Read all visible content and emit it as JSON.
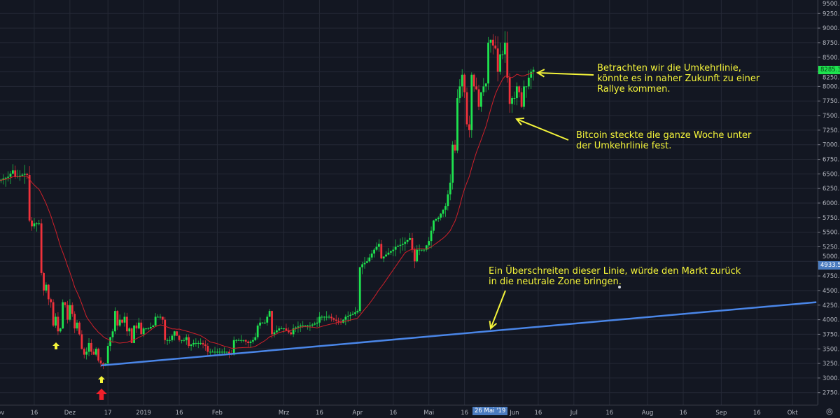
{
  "chart_data": {
    "type": "candlestick",
    "title": "",
    "xlabel": "",
    "ylabel": "",
    "ylim": [
      2550,
      9550
    ],
    "y_ticks": [
      2750,
      3000,
      3250,
      3500,
      3750,
      4000,
      4250,
      4500,
      4750,
      5000,
      5250,
      5500,
      5750,
      6000,
      6250,
      6500,
      6750,
      7000,
      7250,
      7500,
      7750,
      8000,
      8250,
      8500,
      8750,
      9000,
      9250,
      9500
    ],
    "x_ticks": [
      {
        "date": "2018-11-01",
        "label": "Nov"
      },
      {
        "date": "2018-11-16",
        "label": "16"
      },
      {
        "date": "2018-12-01",
        "label": "Dez"
      },
      {
        "date": "2018-12-17",
        "label": "17"
      },
      {
        "date": "2019-01-01",
        "label": "2019"
      },
      {
        "date": "2019-01-16",
        "label": "16"
      },
      {
        "date": "2019-02-01",
        "label": "Feb"
      },
      {
        "date": "2019-03-01",
        "label": "Mrz"
      },
      {
        "date": "2019-03-16",
        "label": "16"
      },
      {
        "date": "2019-04-01",
        "label": "Apr"
      },
      {
        "date": "2019-04-16",
        "label": "16"
      },
      {
        "date": "2019-05-01",
        "label": "Mai"
      },
      {
        "date": "2019-05-16",
        "label": "16"
      },
      {
        "date": "2019-06-01",
        "label": "Jun"
      },
      {
        "date": "2019-06-16",
        "label": "16"
      },
      {
        "date": "2019-07-01",
        "label": "Jul"
      },
      {
        "date": "2019-07-16",
        "label": "16"
      },
      {
        "date": "2019-08-01",
        "label": "Aug"
      },
      {
        "date": "2019-08-16",
        "label": "16"
      },
      {
        "date": "2019-09-01",
        "label": "Sep"
      },
      {
        "date": "2019-09-16",
        "label": "16"
      },
      {
        "date": "2019-10-01",
        "label": "Okt"
      }
    ],
    "grid": true,
    "colors": {
      "background": "#131722",
      "grid": "#252936",
      "up": "#1ee34f",
      "down": "#f0313b",
      "moving_average": "#d0202a",
      "trendline": "#4a86e8",
      "annotation": "#f5f53a"
    },
    "close_series": [
      [
        "2018-11-01",
        6380
      ],
      [
        "2018-11-03",
        6420
      ],
      [
        "2018-11-05",
        6450
      ],
      [
        "2018-11-07",
        6560
      ],
      [
        "2018-11-08",
        6450
      ],
      [
        "2018-11-10",
        6470
      ],
      [
        "2018-11-12",
        6500
      ],
      [
        "2018-11-13",
        6480
      ],
      [
        "2018-11-14",
        5700
      ],
      [
        "2018-11-15",
        5600
      ],
      [
        "2018-11-16",
        5650
      ],
      [
        "2018-11-18",
        5650
      ],
      [
        "2018-11-19",
        4800
      ],
      [
        "2018-11-20",
        4500
      ],
      [
        "2018-11-21",
        4600
      ],
      [
        "2018-11-22",
        4350
      ],
      [
        "2018-11-23",
        4300
      ],
      [
        "2018-11-24",
        3900
      ],
      [
        "2018-11-25",
        4050
      ],
      [
        "2018-11-26",
        3800
      ],
      [
        "2018-11-27",
        3850
      ],
      [
        "2018-11-28",
        4300
      ],
      [
        "2018-11-29",
        4250
      ],
      [
        "2018-11-30",
        4000
      ],
      [
        "2018-12-01",
        4250
      ],
      [
        "2018-12-02",
        4100
      ],
      [
        "2018-12-03",
        3850
      ],
      [
        "2018-12-04",
        3950
      ],
      [
        "2018-12-05",
        3750
      ],
      [
        "2018-12-06",
        3500
      ],
      [
        "2018-12-07",
        3400
      ],
      [
        "2018-12-08",
        3450
      ],
      [
        "2018-12-09",
        3600
      ],
      [
        "2018-12-10",
        3450
      ],
      [
        "2018-12-11",
        3400
      ],
      [
        "2018-12-12",
        3500
      ],
      [
        "2018-12-13",
        3300
      ],
      [
        "2018-12-14",
        3250
      ],
      [
        "2018-12-15",
        3230
      ],
      [
        "2018-12-16",
        3250
      ],
      [
        "2018-12-17",
        3550
      ],
      [
        "2018-12-18",
        3700
      ],
      [
        "2018-12-19",
        3800
      ],
      [
        "2018-12-20",
        4150
      ],
      [
        "2018-12-21",
        3900
      ],
      [
        "2018-12-22",
        4000
      ],
      [
        "2018-12-23",
        3950
      ],
      [
        "2018-12-24",
        4050
      ],
      [
        "2018-12-25",
        3800
      ],
      [
        "2018-12-26",
        3850
      ],
      [
        "2018-12-27",
        3600
      ],
      [
        "2018-12-28",
        3900
      ],
      [
        "2018-12-29",
        3850
      ],
      [
        "2018-12-30",
        3950
      ],
      [
        "2018-12-31",
        3750
      ],
      [
        "2019-01-01",
        3850
      ],
      [
        "2019-01-03",
        3850
      ],
      [
        "2019-01-05",
        3900
      ],
      [
        "2019-01-06",
        4050
      ],
      [
        "2019-01-08",
        4050
      ],
      [
        "2019-01-09",
        4000
      ],
      [
        "2019-01-10",
        3650
      ],
      [
        "2019-01-12",
        3650
      ],
      [
        "2019-01-14",
        3800
      ],
      [
        "2019-01-16",
        3650
      ],
      [
        "2019-01-18",
        3650
      ],
      [
        "2019-01-19",
        3700
      ],
      [
        "2019-01-20",
        3550
      ],
      [
        "2019-01-22",
        3600
      ],
      [
        "2019-01-25",
        3600
      ],
      [
        "2019-01-27",
        3550
      ],
      [
        "2019-01-28",
        3450
      ],
      [
        "2019-01-31",
        3450
      ],
      [
        "2019-02-03",
        3450
      ],
      [
        "2019-02-05",
        3450
      ],
      [
        "2019-02-07",
        3400
      ],
      [
        "2019-02-08",
        3650
      ],
      [
        "2019-02-10",
        3650
      ],
      [
        "2019-02-12",
        3650
      ],
      [
        "2019-02-14",
        3600
      ],
      [
        "2019-02-16",
        3650
      ],
      [
        "2019-02-17",
        3700
      ],
      [
        "2019-02-18",
        3900
      ],
      [
        "2019-02-19",
        3950
      ],
      [
        "2019-02-21",
        3950
      ],
      [
        "2019-02-23",
        4150
      ],
      [
        "2019-02-24",
        3750
      ],
      [
        "2019-02-27",
        3850
      ],
      [
        "2019-03-01",
        3850
      ],
      [
        "2019-03-04",
        3750
      ],
      [
        "2019-03-05",
        3850
      ],
      [
        "2019-03-08",
        3900
      ],
      [
        "2019-03-12",
        3900
      ],
      [
        "2019-03-15",
        3950
      ],
      [
        "2019-03-16",
        4050
      ],
      [
        "2019-03-20",
        4050
      ],
      [
        "2019-03-22",
        4000
      ],
      [
        "2019-03-25",
        3950
      ],
      [
        "2019-03-27",
        4050
      ],
      [
        "2019-03-30",
        4100
      ],
      [
        "2019-04-01",
        4150
      ],
      [
        "2019-04-02",
        4900
      ],
      [
        "2019-04-03",
        4950
      ],
      [
        "2019-04-05",
        5000
      ],
      [
        "2019-04-08",
        5200
      ],
      [
        "2019-04-10",
        5300
      ],
      [
        "2019-04-11",
        5050
      ],
      [
        "2019-04-14",
        5150
      ],
      [
        "2019-04-16",
        5200
      ],
      [
        "2019-04-17",
        5250
      ],
      [
        "2019-04-20",
        5300
      ],
      [
        "2019-04-23",
        5400
      ],
      [
        "2019-04-25",
        5000
      ],
      [
        "2019-04-26",
        5200
      ],
      [
        "2019-04-29",
        5200
      ],
      [
        "2019-05-01",
        5350
      ],
      [
        "2019-05-03",
        5700
      ],
      [
        "2019-05-05",
        5750
      ],
      [
        "2019-05-08",
        5950
      ],
      [
        "2019-05-10",
        6350
      ],
      [
        "2019-05-11",
        7000
      ],
      [
        "2019-05-12",
        6900
      ],
      [
        "2019-05-13",
        7800
      ],
      [
        "2019-05-14",
        8000
      ],
      [
        "2019-05-15",
        8200
      ],
      [
        "2019-05-16",
        7900
      ],
      [
        "2019-05-17",
        7350
      ],
      [
        "2019-05-18",
        7250
      ],
      [
        "2019-05-19",
        8200
      ],
      [
        "2019-05-20",
        8000
      ],
      [
        "2019-05-21",
        7950
      ],
      [
        "2019-05-22",
        7650
      ],
      [
        "2019-05-23",
        7900
      ],
      [
        "2019-05-24",
        8000
      ],
      [
        "2019-05-25",
        8050
      ],
      [
        "2019-05-26",
        8750
      ],
      [
        "2019-05-27",
        8800
      ],
      [
        "2019-05-28",
        8700
      ],
      [
        "2019-05-29",
        8650
      ],
      [
        "2019-05-30",
        8250
      ],
      [
        "2019-05-31",
        8550
      ],
      [
        "2019-06-01",
        8550
      ],
      [
        "2019-06-02",
        8750
      ],
      [
        "2019-06-03",
        8150
      ],
      [
        "2019-06-04",
        7700
      ],
      [
        "2019-06-05",
        7800
      ],
      [
        "2019-06-06",
        7800
      ],
      [
        "2019-06-07",
        8000
      ],
      [
        "2019-06-08",
        7900
      ],
      [
        "2019-06-09",
        7650
      ],
      [
        "2019-06-10",
        8000
      ],
      [
        "2019-06-11",
        8000
      ],
      [
        "2019-06-12",
        8150
      ],
      [
        "2019-06-13",
        8250
      ],
      [
        "2019-06-14",
        8285.3
      ]
    ],
    "trendline": {
      "start": [
        "2018-12-14",
        3215
      ],
      "end": [
        "2019-10-11",
        4300
      ]
    },
    "last_price_label": "8285.3",
    "crosshair_price_label": "4933.5",
    "crosshair_date_label": "26 Mai '19",
    "annotations": [
      {
        "text_lines": [
          "Betrachten wir die Umkehrlinie,",
          "könnte es in naher Zukunft zu einer",
          "Rallye kommen."
        ]
      },
      {
        "text_lines": [
          "Bitcoin steckte die ganze Woche unter",
          "der Umkehrlinie fest."
        ]
      },
      {
        "text_lines": [
          "Ein Überschreiten dieser Linie, würde den Markt zurück",
          "in die neutrale Zone bringen."
        ]
      }
    ],
    "markers": [
      {
        "type": "arrow-up",
        "color": "#f5f53a"
      },
      {
        "type": "arrow-up",
        "color": "#f5f53a"
      },
      {
        "type": "arrow-up",
        "color": "#f0202a"
      }
    ]
  }
}
